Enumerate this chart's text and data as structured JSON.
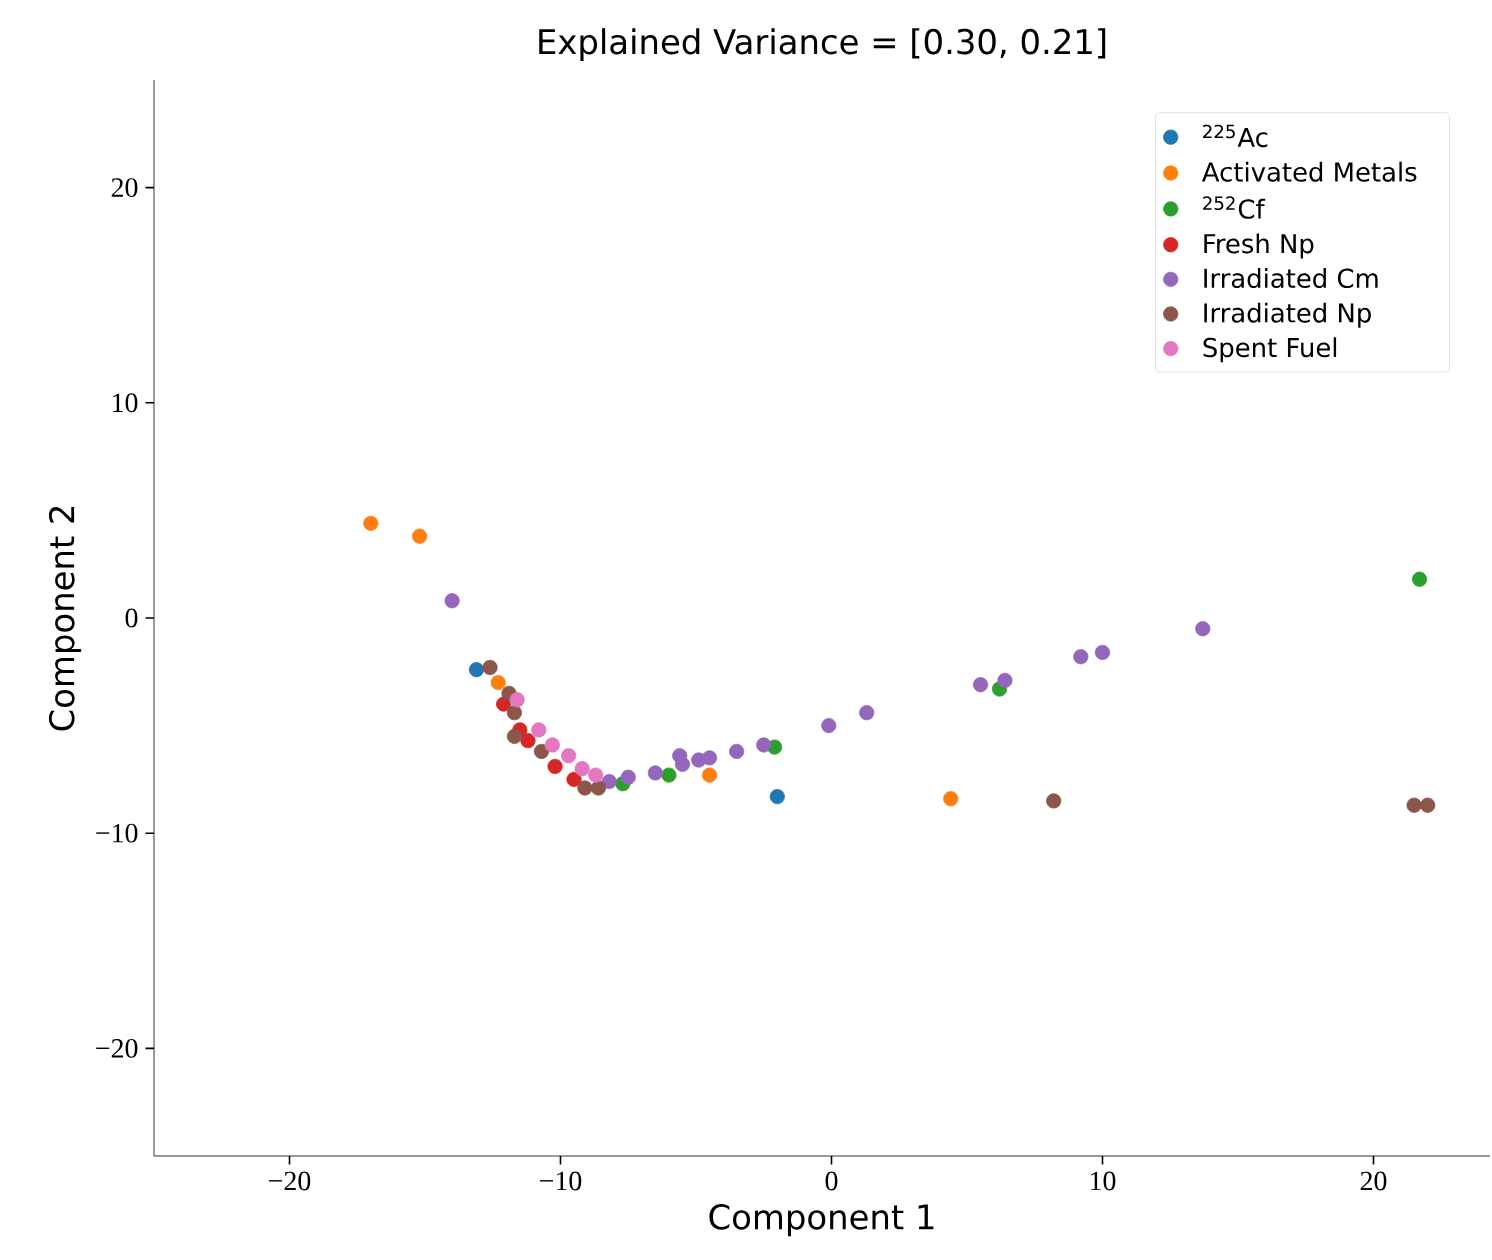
{
  "chart_data": {
    "type": "scatter",
    "title": "Explained Variance = [0.30, 0.21]",
    "xlabel": "Component 1",
    "ylabel": "Component 2",
    "xlim": [
      -25,
      24.3
    ],
    "ylim": [
      -25,
      25
    ],
    "xticks": [
      {
        "value": -20,
        "label": "−20"
      },
      {
        "value": -10,
        "label": "−10"
      },
      0,
      10,
      20
    ],
    "yticks": [
      {
        "value": -20,
        "label": "−20"
      },
      {
        "value": -10,
        "label": "−10"
      },
      0,
      10,
      20
    ],
    "grid": false,
    "legend": "top right",
    "marker": "circle",
    "series": [
      {
        "name": "$^{225}$Ac",
        "color": "#1f77b4",
        "x": [
          -13.1,
          -2.0
        ],
        "values": [
          -2.4,
          -8.3
        ]
      },
      {
        "name": "Activated Metals",
        "color": "#ff7f0e",
        "x": [
          -17.0,
          -15.2,
          -12.3,
          -4.5,
          4.4
        ],
        "values": [
          4.4,
          3.8,
          -3.0,
          -7.3,
          -8.4
        ]
      },
      {
        "name": "$^{252}$Cf",
        "color": "#2ca02c",
        "x": [
          21.7,
          6.2,
          -2.1,
          -7.7,
          -6.0
        ],
        "values": [
          1.8,
          -3.3,
          -6.0,
          -7.7,
          -7.3
        ]
      },
      {
        "name": "Fresh Np",
        "color": "#d62728",
        "x": [
          -12.1,
          -11.5,
          -11.2,
          -10.2,
          -9.5
        ],
        "values": [
          -4.0,
          -5.2,
          -5.7,
          -6.9,
          -7.5
        ]
      },
      {
        "name": "Irradiated Cm",
        "color": "#9467bd",
        "x": [
          -14.0,
          13.7,
          10.0,
          9.2,
          6.4,
          5.5,
          1.3,
          -0.1,
          -2.5,
          -3.5,
          -4.5,
          -5.5,
          -6.5,
          -7.5,
          -8.2,
          -4.9,
          -5.6
        ],
        "values": [
          0.8,
          -0.5,
          -1.6,
          -1.8,
          -2.9,
          -3.1,
          -4.4,
          -5.0,
          -5.9,
          -6.2,
          -6.5,
          -6.8,
          -7.2,
          -7.4,
          -7.6,
          -6.6,
          -6.4
        ]
      },
      {
        "name": "Irradiated Np",
        "color": "#8c564b",
        "x": [
          21.5,
          22.0,
          8.2,
          -12.6,
          -11.9,
          -11.7,
          -11.7,
          -10.7,
          -8.6,
          -9.1
        ],
        "values": [
          -8.7,
          -8.7,
          -8.5,
          -2.3,
          -3.5,
          -4.4,
          -5.5,
          -6.2,
          -7.9,
          -7.9
        ]
      },
      {
        "name": "Spent Fuel",
        "color": "#e377c2",
        "x": [
          -11.6,
          -10.8,
          -10.3,
          -9.7,
          -9.2,
          -8.7
        ],
        "values": [
          -3.8,
          -5.2,
          -5.9,
          -6.4,
          -7.0,
          -7.3
        ]
      }
    ]
  }
}
